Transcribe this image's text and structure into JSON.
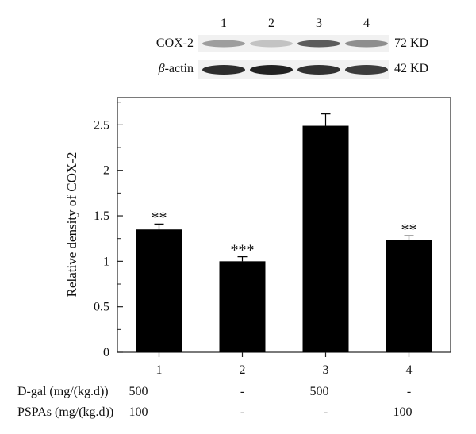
{
  "blot": {
    "lanes": [
      "1",
      "2",
      "3",
      "4"
    ],
    "rows": [
      {
        "label": "COX-2",
        "size": "72 KD",
        "intensity": [
          0.4,
          0.22,
          0.72,
          0.48
        ]
      },
      {
        "label_symbol": "β",
        "label_rest": "-actin",
        "size": "42 KD",
        "intensity": [
          0.95,
          1.0,
          0.92,
          0.88
        ]
      }
    ]
  },
  "chart_data": {
    "type": "bar",
    "categories": [
      "1",
      "2",
      "3",
      "4"
    ],
    "values": [
      1.35,
      1.0,
      2.49,
      1.23
    ],
    "error": [
      0.06,
      0.05,
      0.13,
      0.05
    ],
    "significance": [
      "**",
      "***",
      "",
      "**"
    ],
    "ylabel": "Relative density of COX-2",
    "ylim": [
      0,
      2.8
    ],
    "yticks": [
      "0",
      "0.5",
      "1",
      "1.5",
      "2",
      "2.5"
    ],
    "grid": false,
    "bar_color": "#000000"
  },
  "treatments": [
    {
      "label": "D-gal (mg/(kg.d))",
      "values": [
        "500",
        "-",
        "500",
        "-"
      ]
    },
    {
      "label": "PSPAs (mg/(kg.d))",
      "values": [
        "100",
        "-",
        "-",
        "100"
      ]
    }
  ]
}
